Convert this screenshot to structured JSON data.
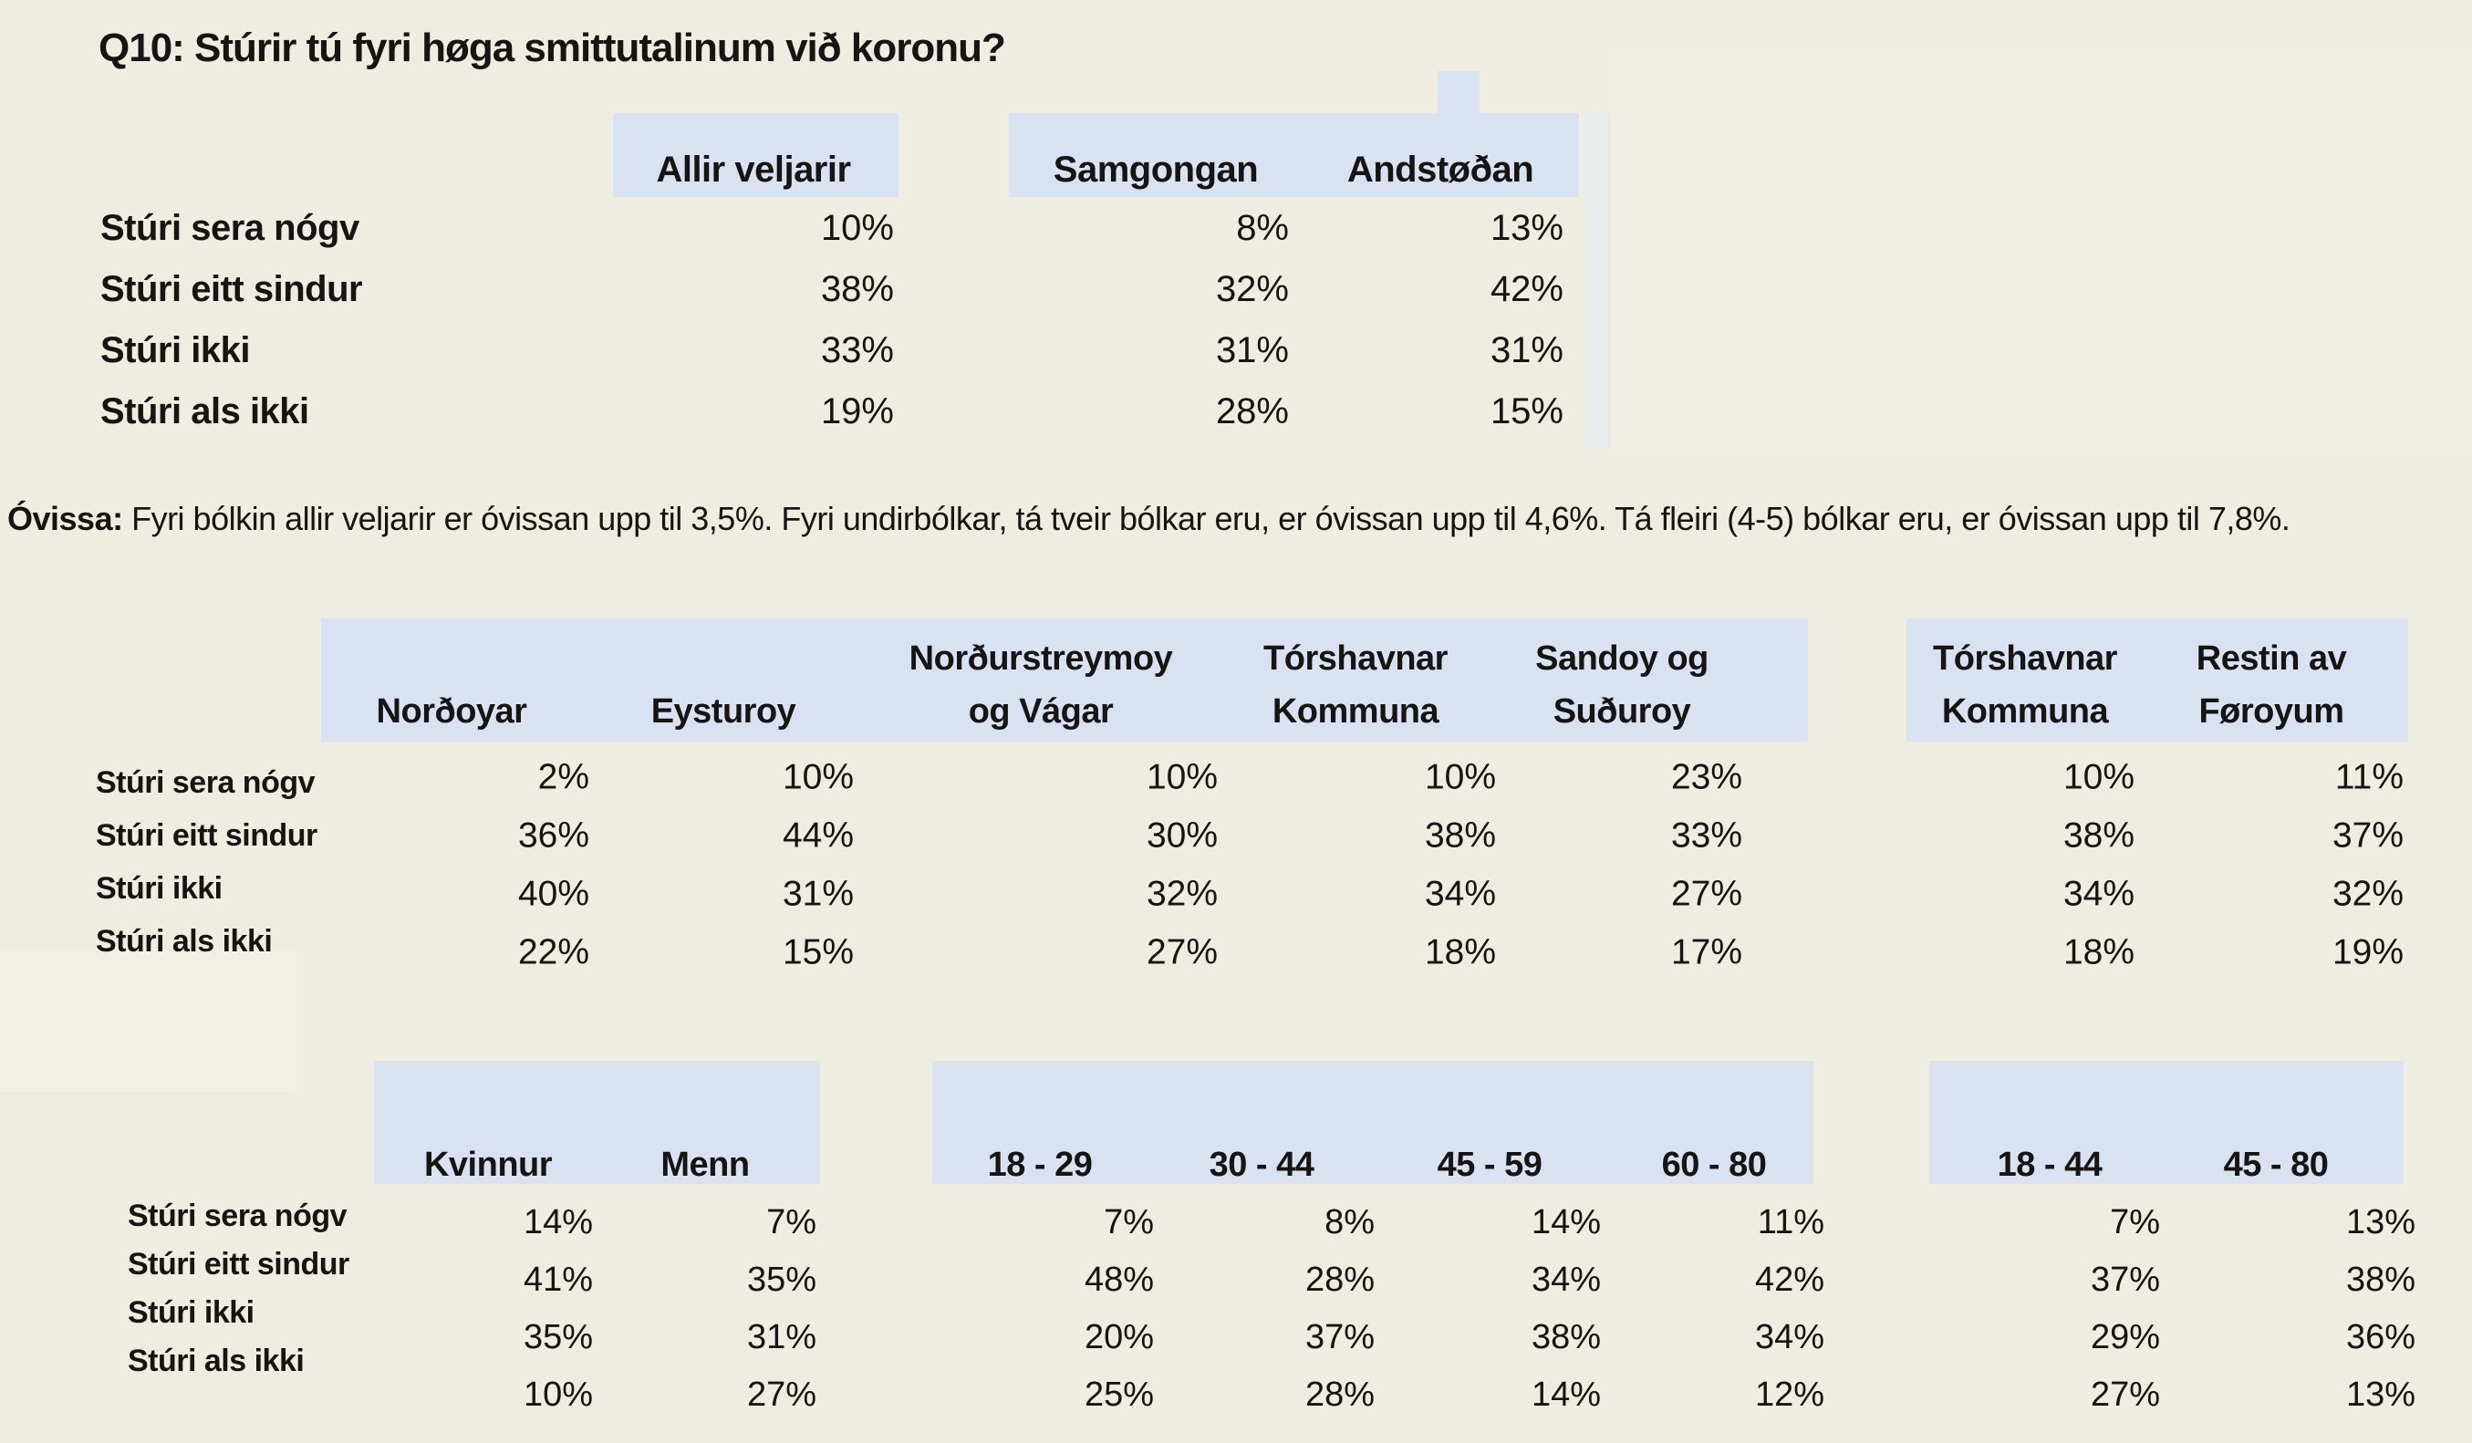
{
  "title": "Q10: Stúrir tú fyri høga smittutalinum við koronu?",
  "note": {
    "label": "Óvissa:",
    "text": " Fyri bólkin allir veljarir er óvissan upp til 3,5%. Fyri undirbólkar, tá tveir bólkar eru, er óvissan upp til 4,6%. Tá fleiri (4-5) bólkar eru, er óvissan upp til 7,8%."
  },
  "row_labels": [
    "Stúri sera nógv",
    "Stúri eitt sindur",
    "Stúri ikki",
    "Stúri als ikki"
  ],
  "colors": {
    "background": "#EFECE1",
    "header_fill": "#DAE2F1",
    "text": "#161514"
  },
  "tables": {
    "party": {
      "columns": [
        [
          "Allir veljarir"
        ],
        [
          "Samgongan"
        ],
        [
          "Andstøðan"
        ]
      ],
      "rows": [
        [
          "10%",
          "8%",
          "13%"
        ],
        [
          "38%",
          "32%",
          "42%"
        ],
        [
          "33%",
          "31%",
          "31%"
        ],
        [
          "19%",
          "28%",
          "15%"
        ]
      ]
    },
    "region": {
      "columns": [
        [
          "Norðoyar"
        ],
        [
          "Eysturoy"
        ],
        [
          "Norðurstreymoy",
          "og Vágar"
        ],
        [
          "Tórshavnar",
          "Kommuna"
        ],
        [
          "Sandoy og",
          "Suðuroy"
        ],
        [
          "Tórshavnar",
          "Kommuna"
        ],
        [
          "Restin av",
          "Føroyum"
        ]
      ],
      "rows": [
        [
          "2%",
          "10%",
          "10%",
          "10%",
          "23%",
          "10%",
          "11%"
        ],
        [
          "36%",
          "44%",
          "30%",
          "38%",
          "33%",
          "38%",
          "37%"
        ],
        [
          "40%",
          "31%",
          "32%",
          "34%",
          "27%",
          "34%",
          "32%"
        ],
        [
          "22%",
          "15%",
          "27%",
          "18%",
          "17%",
          "18%",
          "19%"
        ]
      ]
    },
    "demographics": {
      "columns": [
        [
          "Kvinnur"
        ],
        [
          "Menn"
        ],
        [
          "18 - 29"
        ],
        [
          "30 - 44"
        ],
        [
          "45 - 59"
        ],
        [
          "60 - 80"
        ],
        [
          "18 - 44"
        ],
        [
          "45 - 80"
        ]
      ],
      "rows": [
        [
          "14%",
          "7%",
          "7%",
          "8%",
          "14%",
          "11%",
          "7%",
          "13%"
        ],
        [
          "41%",
          "35%",
          "48%",
          "28%",
          "34%",
          "42%",
          "37%",
          "38%"
        ],
        [
          "35%",
          "31%",
          "20%",
          "37%",
          "38%",
          "34%",
          "29%",
          "36%"
        ],
        [
          "10%",
          "27%",
          "25%",
          "28%",
          "14%",
          "12%",
          "27%",
          "13%"
        ]
      ]
    }
  }
}
